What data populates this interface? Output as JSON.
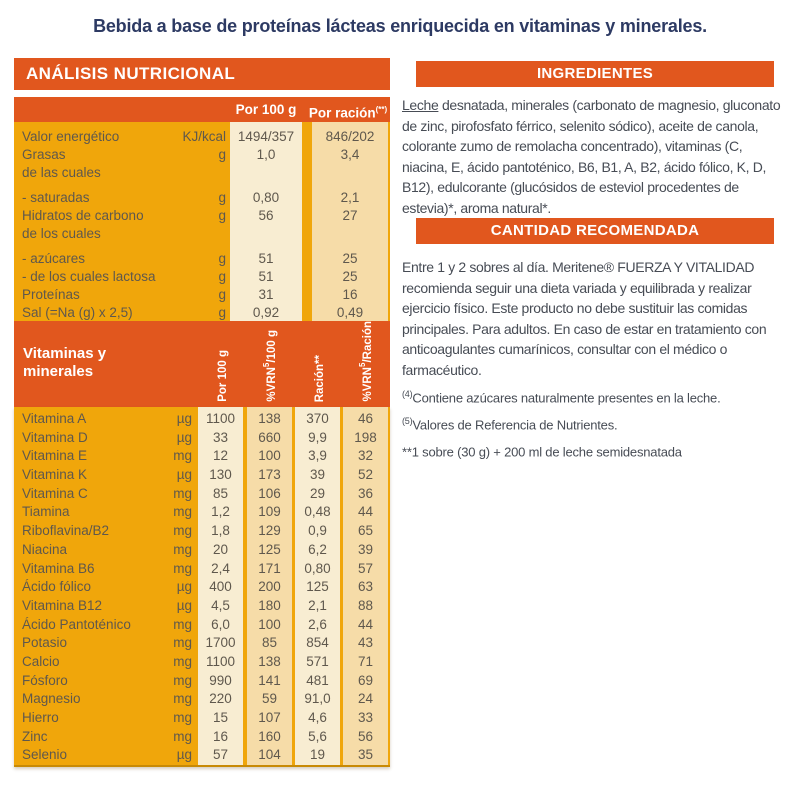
{
  "title": "Bebida a base de proteínas lácteas enriquecida en vitaminas y minerales.",
  "colors": {
    "accent_orange": "#e1571e",
    "table_yellow": "#f0a60b",
    "column_cream": "#f8edd2",
    "column_tan": "#f6dca8",
    "title_navy": "#2d3a63",
    "table_text": "#5f584d",
    "body_text": "#474c55"
  },
  "analysis": {
    "header": "ANÁLISIS NUTRICIONAL",
    "macro": {
      "col1_header": "Por 100 g",
      "col2_header": {
        "text": "Por ración",
        "sup": "(**)"
      },
      "rows": [
        {
          "label": "Valor energético",
          "unit": "KJ/kcal",
          "per100": "1494/357",
          "racion": "846/202",
          "gap": false
        },
        {
          "label": "Grasas",
          "unit": "g",
          "per100": "1,0",
          "racion": "3,4",
          "gap": false
        },
        {
          "label": "de las cuales",
          "unit": "",
          "per100": "",
          "racion": "",
          "gap": true
        },
        {
          "label": "- saturadas",
          "unit": "g",
          "per100": "0,80",
          "racion": "2,1",
          "gap": false
        },
        {
          "label": "Hidratos de carbono",
          "unit": "g",
          "per100": "56",
          "racion": "27",
          "gap": false
        },
        {
          "label": "de los cuales",
          "unit": "",
          "per100": "",
          "racion": "",
          "gap": true
        },
        {
          "label": "- azúcares",
          "unit": "g",
          "per100": "51",
          "racion": "25",
          "gap": false
        },
        {
          "label": "- de los cuales lactosa",
          "unit": "g",
          "per100": "51",
          "racion": "25",
          "gap": false
        },
        {
          "label": "Proteínas",
          "unit": "g",
          "per100": "31",
          "racion": "16",
          "gap": false
        },
        {
          "label": "Sal (=Na (g) x 2,5)",
          "unit": "g",
          "per100": "0,92",
          "racion": "0,49",
          "gap": false
        }
      ]
    },
    "vitamins": {
      "header": {
        "line1": "Vitaminas y",
        "line2": "minerales"
      },
      "col_headers": [
        {
          "pre": "Por 100 g",
          "sup": "",
          "post": ""
        },
        {
          "pre": "%VRN",
          "sup": "5",
          "post": "/100 g"
        },
        {
          "pre": "Ración**",
          "sup": "",
          "post": ""
        },
        {
          "pre": "%VRN",
          "sup": "5",
          "post": "/Ración"
        }
      ],
      "rows": [
        {
          "label": "Vitamina A",
          "unit": "µg",
          "v": [
            "1100",
            "138",
            "370",
            "46"
          ]
        },
        {
          "label": "Vitamina D",
          "unit": "µg",
          "v": [
            "33",
            "660",
            "9,9",
            "198"
          ]
        },
        {
          "label": "Vitamina E",
          "unit": "mg",
          "v": [
            "12",
            "100",
            "3,9",
            "32"
          ]
        },
        {
          "label": "Vitamina K",
          "unit": "µg",
          "v": [
            "130",
            "173",
            "39",
            "52"
          ]
        },
        {
          "label": "Vitamina C",
          "unit": "mg",
          "v": [
            "85",
            "106",
            "29",
            "36"
          ]
        },
        {
          "label": "Tiamina",
          "unit": "mg",
          "v": [
            "1,2",
            "109",
            "0,48",
            "44"
          ]
        },
        {
          "label": "Riboflavina/B2",
          "unit": "mg",
          "v": [
            "1,8",
            "129",
            "0,9",
            "65"
          ]
        },
        {
          "label": "Niacina",
          "unit": "mg",
          "v": [
            "20",
            "125",
            "6,2",
            "39"
          ]
        },
        {
          "label": "Vitamina B6",
          "unit": "mg",
          "v": [
            "2,4",
            "171",
            "0,80",
            "57"
          ]
        },
        {
          "label": "Ácido fólico",
          "unit": "µg",
          "v": [
            "400",
            "200",
            "125",
            "63"
          ]
        },
        {
          "label": "Vitamina B12",
          "unit": "µg",
          "v": [
            "4,5",
            "180",
            "2,1",
            "88"
          ]
        },
        {
          "label": "Ácido Pantoténico",
          "unit": "mg",
          "v": [
            "6,0",
            "100",
            "2,6",
            "44"
          ]
        },
        {
          "label": "Potasio",
          "unit": "mg",
          "v": [
            "1700",
            "85",
            "854",
            "43"
          ]
        },
        {
          "label": "Calcio",
          "unit": "mg",
          "v": [
            "1100",
            "138",
            "571",
            "71"
          ]
        },
        {
          "label": "Fósforo",
          "unit": "mg",
          "v": [
            "990",
            "141",
            "481",
            "69"
          ]
        },
        {
          "label": "Magnesio",
          "unit": "mg",
          "v": [
            "220",
            "59",
            "91,0",
            "24"
          ]
        },
        {
          "label": "Hierro",
          "unit": "mg",
          "v": [
            "15",
            "107",
            "4,6",
            "33"
          ]
        },
        {
          "label": "Zinc",
          "unit": "mg",
          "v": [
            "16",
            "160",
            "5,6",
            "56"
          ]
        },
        {
          "label": "Selenio",
          "unit": "µg",
          "v": [
            "57",
            "104",
            "19",
            "35"
          ]
        }
      ]
    }
  },
  "ingredients": {
    "header": "INGREDIENTES",
    "lead": "Leche",
    "text": " desnatada, minerales (carbonato de magnesio, gluconato de zinc, pirofosfato férrico, selenito sódico), aceite de canola, colorante zumo de remolacha concentrado), vitaminas (C, niacina, E, ácido pantoténico, B6, B1, A, B2, ácido fólico, K, D, B12), edulcorante (glucósidos de esteviol procedentes de estevia)*, aroma natural*."
  },
  "recommended": {
    "header": "CANTIDAD RECOMENDADA",
    "text": "Entre 1 y 2 sobres al día. Meritene® FUERZA Y VITALIDAD recomienda seguir una dieta variada y equilibrada y realizar ejercicio físico. Este producto no debe sustituir las comidas principales. Para adultos. En caso de estar en tratamiento con anticoagulantes cumarínicos, consultar con el médico o farmacéutico."
  },
  "footnotes": [
    {
      "sup": "(4)",
      "text": "Contiene azúcares naturalmente presentes en la leche."
    },
    {
      "sup": "(5)",
      "text": "Valores de Referencia de Nutrientes."
    },
    {
      "sup": "",
      "text": "**1 sobre (30 g) + 200 ml de leche semidesnatada"
    }
  ]
}
